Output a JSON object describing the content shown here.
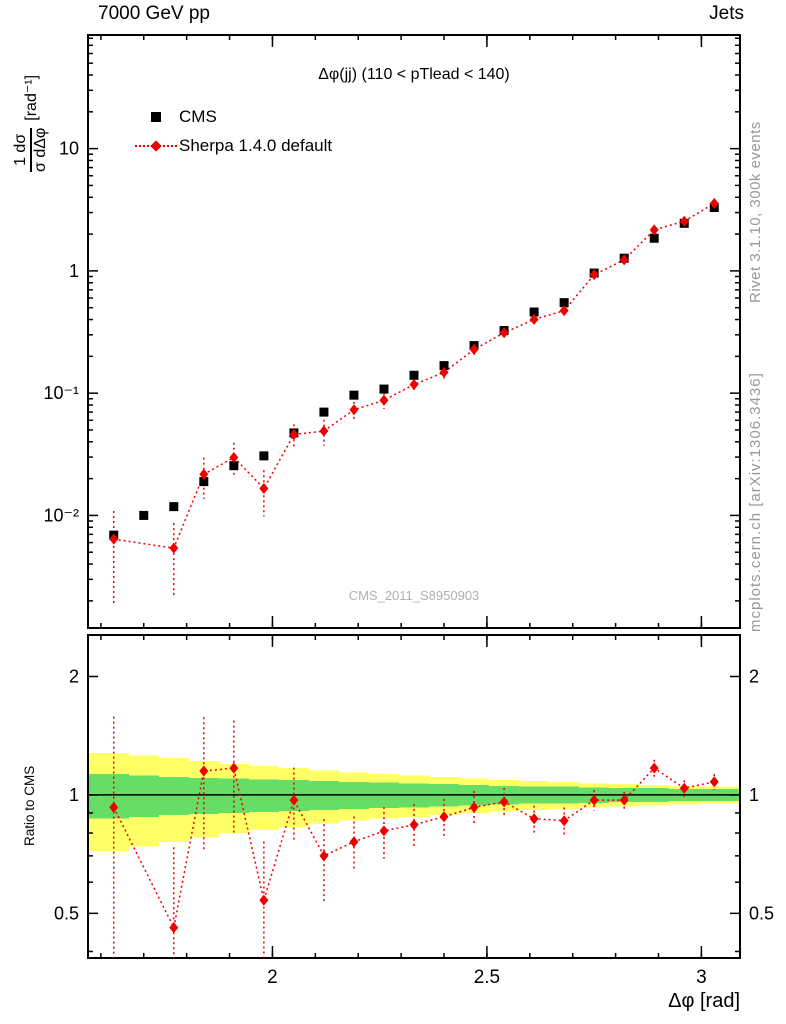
{
  "header": {
    "left": "7000 GeV pp",
    "right": "Jets"
  },
  "watermark": "CMS_2011_S8950903",
  "side_labels": {
    "top": "Rivet 3.1.10,  300k events",
    "bottom": "mcplots.cern.ch [arXiv:1306.3436]"
  },
  "legend": [
    {
      "label": "CMS",
      "marker": "square",
      "color": "#000000"
    },
    {
      "label": "Sherpa 1.4.0 default",
      "marker": "diamond-dotted",
      "color": "#ee0000"
    }
  ],
  "chart_data": {
    "type": "line",
    "title": "Δφ(jj) (110 < pTlead <  140)",
    "axes": {
      "xlabel": "Δφ [rad]",
      "ylabel_num": "1 dσ",
      "ylabel_den": "σ dΔφ",
      "ylabel_unit": "[rad⁻¹]",
      "ratio_ylabel": "Ratio to CMS",
      "y_log": true,
      "ratio_log": true
    },
    "x_range": [
      1.57,
      3.09
    ],
    "y_range": [
      0.0012,
      85
    ],
    "ratio_range": [
      0.385,
      2.55
    ],
    "x_ticks": [
      {
        "v": 2,
        "label": "2"
      },
      {
        "v": 2.5,
        "label": "2.5"
      },
      {
        "v": 3,
        "label": "3"
      }
    ],
    "x_minor_step": 0.1,
    "y_ticks": [
      {
        "v": 10,
        "label": "10"
      },
      {
        "v": 1,
        "label": "1"
      },
      {
        "v": 0.1,
        "label": "10⁻¹"
      },
      {
        "v": 0.01,
        "label": "10⁻²"
      }
    ],
    "ratio_ticks": [
      {
        "v": 0.5,
        "label": "0.5"
      },
      {
        "v": 1,
        "label": "1"
      },
      {
        "v": 2,
        "label": "2"
      }
    ],
    "ratio_minor": [
      0.4,
      0.6,
      0.7,
      0.8,
      0.9
    ],
    "x": [
      1.63,
      1.7,
      1.77,
      1.84,
      1.91,
      1.98,
      2.05,
      2.12,
      2.19,
      2.26,
      2.33,
      2.4,
      2.47,
      2.54,
      2.61,
      2.68,
      2.75,
      2.82,
      2.89,
      2.96,
      3.03
    ],
    "series": [
      {
        "name": "CMS",
        "marker": "square",
        "color": "#000000",
        "values": [
          0.0069,
          0.01,
          0.0118,
          0.0189,
          0.0255,
          0.0307,
          0.0473,
          0.07,
          0.0963,
          0.108,
          0.14,
          0.168,
          0.245,
          0.325,
          0.461,
          0.55,
          0.96,
          1.27,
          1.85,
          2.45,
          3.3
        ]
      },
      {
        "name": "Sherpa 1.4.0 default",
        "marker": "diamond",
        "color": "#ee0000",
        "linestyle": "dotted",
        "values": [
          0.0064,
          null,
          0.0054,
          0.0217,
          0.0298,
          0.0166,
          0.0459,
          0.049,
          0.0732,
          0.0875,
          0.1176,
          0.1478,
          0.2279,
          0.312,
          0.4011,
          0.473,
          0.9312,
          1.2319,
          2.1645,
          2.548,
          3.564
        ],
        "rel_err": [
          0.7,
          null,
          0.6,
          0.37,
          0.32,
          0.41,
          0.21,
          0.24,
          0.16,
          0.15,
          0.13,
          0.11,
          0.1,
          0.085,
          0.08,
          0.08,
          0.06,
          0.05,
          0.05,
          0.048,
          0.046
        ]
      }
    ],
    "ratio": {
      "name": "Sherpa/CMS",
      "values": [
        0.93,
        null,
        0.46,
        1.15,
        1.17,
        0.54,
        0.97,
        0.7,
        0.76,
        0.81,
        0.84,
        0.88,
        0.93,
        0.96,
        0.87,
        0.86,
        0.97,
        0.97,
        1.17,
        1.04,
        1.08
      ],
      "rel_err": [
        0.7,
        null,
        0.6,
        0.37,
        0.32,
        0.41,
        0.21,
        0.24,
        0.16,
        0.15,
        0.13,
        0.11,
        0.1,
        0.085,
        0.08,
        0.08,
        0.06,
        0.05,
        0.05,
        0.048,
        0.046
      ],
      "band_yellow": [
        0.28,
        0.26,
        0.24,
        0.22,
        0.2,
        0.185,
        0.17,
        0.155,
        0.14,
        0.13,
        0.12,
        0.11,
        0.1,
        0.09,
        0.085,
        0.08,
        0.07,
        0.065,
        0.06,
        0.055,
        0.05
      ],
      "band_green": [
        0.13,
        0.12,
        0.11,
        0.105,
        0.1,
        0.095,
        0.09,
        0.085,
        0.08,
        0.075,
        0.07,
        0.065,
        0.06,
        0.055,
        0.05,
        0.05,
        0.045,
        0.04,
        0.04,
        0.035,
        0.035
      ],
      "band_yellow_color": "#ffff66",
      "band_green_color": "#66dd66"
    }
  }
}
